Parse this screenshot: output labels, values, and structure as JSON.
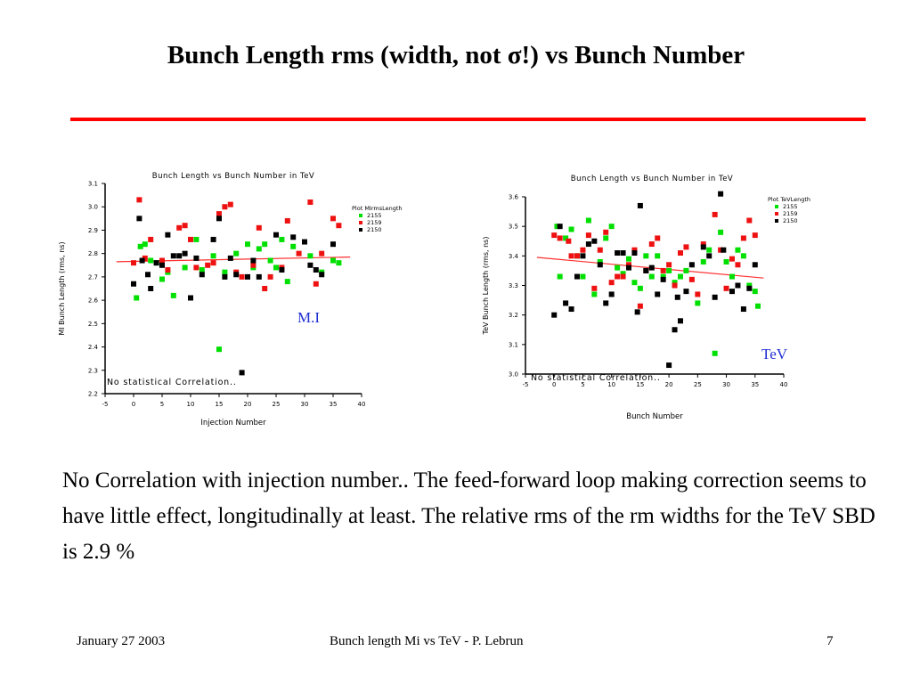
{
  "slide": {
    "title": "Bunch Length rms (width, not σ!)  vs Bunch Number",
    "body": "No Correlation with injection number.. The feed-forward loop making correction seems to have little effect, longitudinally at least. The relative rms of the rm widths for the TeV SBD is 2.9 %",
    "mi_label": "M.I",
    "tev_label": "TeV",
    "footer_date": "January  27  2003",
    "footer_center": "Bunch length Mi vs TeV - P. Lebrun",
    "footer_page": "7"
  },
  "colors": {
    "title_rule": "#ff0000",
    "fit_line": "#ff3030",
    "series": [
      "#00e000",
      "#ee1111",
      "#000000"
    ],
    "annotation_label": "#1f2fd0"
  },
  "chart_data": [
    {
      "type": "scatter",
      "title": "Bunch Length vs Bunch Number in TeV",
      "xlabel": "Injection Number",
      "ylabel": "MI Bunch Length (rms, ns)",
      "xlim": [
        -5,
        40
      ],
      "ylim": [
        2.2,
        3.1
      ],
      "xticks": [
        -5,
        0,
        5,
        10,
        15,
        20,
        25,
        30,
        35,
        40
      ],
      "yticks": [
        2.2,
        2.3,
        2.4,
        2.5,
        2.6,
        2.7,
        2.8,
        2.9,
        3.0,
        3.1
      ],
      "legend_title": "Plot MIrmsLength",
      "legend_position": "top-right",
      "annotation": "No statistical Correlation..",
      "fit_line": {
        "x": [
          -3,
          38
        ],
        "y": [
          2.765,
          2.785
        ]
      },
      "series": [
        {
          "name": "2155",
          "points": [
            [
              0.5,
              2.61
            ],
            [
              1.2,
              2.83
            ],
            [
              2,
              2.84
            ],
            [
              3,
              2.77
            ],
            [
              4,
              2.76
            ],
            [
              5,
              2.69
            ],
            [
              6,
              2.72
            ],
            [
              7,
              2.62
            ],
            [
              9,
              2.74
            ],
            [
              11,
              2.86
            ],
            [
              12,
              2.73
            ],
            [
              14,
              2.79
            ],
            [
              15,
              2.39
            ],
            [
              16,
              2.72
            ],
            [
              18,
              2.8
            ],
            [
              20,
              2.84
            ],
            [
              21,
              2.74
            ],
            [
              22,
              2.82
            ],
            [
              23,
              2.84
            ],
            [
              24,
              2.77
            ],
            [
              25,
              2.74
            ],
            [
              26,
              2.86
            ],
            [
              27,
              2.68
            ],
            [
              28,
              2.83
            ],
            [
              31,
              2.79
            ],
            [
              33,
              2.72
            ],
            [
              35,
              2.77
            ],
            [
              36,
              2.76
            ]
          ]
        },
        {
          "name": "2159",
          "points": [
            [
              0,
              2.76
            ],
            [
              1,
              3.03
            ],
            [
              2,
              2.78
            ],
            [
              3,
              2.86
            ],
            [
              5,
              2.77
            ],
            [
              6,
              2.73
            ],
            [
              8,
              2.91
            ],
            [
              9,
              2.92
            ],
            [
              10,
              2.86
            ],
            [
              11,
              2.74
            ],
            [
              13,
              2.75
            ],
            [
              14,
              2.76
            ],
            [
              15,
              2.97
            ],
            [
              16,
              3.0
            ],
            [
              17,
              3.01
            ],
            [
              18,
              2.72
            ],
            [
              19,
              2.7
            ],
            [
              21,
              2.75
            ],
            [
              22,
              2.91
            ],
            [
              23,
              2.65
            ],
            [
              24,
              2.7
            ],
            [
              26,
              2.74
            ],
            [
              27,
              2.94
            ],
            [
              29,
              2.8
            ],
            [
              31,
              3.02
            ],
            [
              32,
              2.67
            ],
            [
              33,
              2.8
            ],
            [
              35,
              2.95
            ],
            [
              36,
              2.92
            ]
          ]
        },
        {
          "name": "2150",
          "points": [
            [
              0,
              2.67
            ],
            [
              1,
              2.95
            ],
            [
              1.5,
              2.77
            ],
            [
              2.5,
              2.71
            ],
            [
              3,
              2.65
            ],
            [
              4,
              2.76
            ],
            [
              5,
              2.75
            ],
            [
              6,
              2.88
            ],
            [
              7,
              2.79
            ],
            [
              8,
              2.79
            ],
            [
              9,
              2.8
            ],
            [
              10,
              2.61
            ],
            [
              11,
              2.78
            ],
            [
              12,
              2.71
            ],
            [
              14,
              2.86
            ],
            [
              15,
              2.95
            ],
            [
              16,
              2.7
            ],
            [
              17,
              2.78
            ],
            [
              18,
              2.71
            ],
            [
              19,
              2.29
            ],
            [
              20,
              2.7
            ],
            [
              21,
              2.77
            ],
            [
              22,
              2.7
            ],
            [
              25,
              2.88
            ],
            [
              26,
              2.73
            ],
            [
              28,
              2.87
            ],
            [
              30,
              2.85
            ],
            [
              31,
              2.75
            ],
            [
              32,
              2.73
            ],
            [
              33,
              2.71
            ],
            [
              35,
              2.84
            ]
          ]
        }
      ]
    },
    {
      "type": "scatter",
      "title": "Bunch Length vs Bunch Number in TeV",
      "xlabel": "Bunch Number",
      "ylabel": "TeV Bunch Length (rms, ns)",
      "xlim": [
        -5,
        40
      ],
      "ylim": [
        3.0,
        3.6
      ],
      "xticks": [
        -5,
        0,
        5,
        10,
        15,
        20,
        25,
        30,
        35,
        40
      ],
      "yticks": [
        3.0,
        3.1,
        3.2,
        3.3,
        3.4,
        3.5,
        3.6
      ],
      "legend_title": "Plot TeVLength",
      "legend_position": "top-right",
      "annotation": "No statistical Correlation..",
      "fit_line": {
        "x": [
          -3,
          36.5
        ],
        "y": [
          3.395,
          3.325
        ]
      },
      "series": [
        {
          "name": "2155",
          "points": [
            [
              0.5,
              3.5
            ],
            [
              1,
              3.33
            ],
            [
              2,
              3.46
            ],
            [
              3,
              3.49
            ],
            [
              4,
              3.4
            ],
            [
              5,
              3.33
            ],
            [
              6,
              3.52
            ],
            [
              7,
              3.27
            ],
            [
              8,
              3.38
            ],
            [
              9,
              3.46
            ],
            [
              10,
              3.5
            ],
            [
              11,
              3.36
            ],
            [
              12,
              3.34
            ],
            [
              13,
              3.39
            ],
            [
              14,
              3.31
            ],
            [
              15,
              3.29
            ],
            [
              16,
              3.4
            ],
            [
              17,
              3.33
            ],
            [
              18,
              3.4
            ],
            [
              19,
              3.33
            ],
            [
              20,
              3.35
            ],
            [
              21,
              3.31
            ],
            [
              22,
              3.33
            ],
            [
              23,
              3.35
            ],
            [
              25,
              3.24
            ],
            [
              26,
              3.38
            ],
            [
              27,
              3.42
            ],
            [
              28,
              3.07
            ],
            [
              29,
              3.48
            ],
            [
              30,
              3.38
            ],
            [
              31,
              3.33
            ],
            [
              32,
              3.42
            ],
            [
              33,
              3.4
            ],
            [
              34,
              3.3
            ],
            [
              35,
              3.28
            ],
            [
              35.5,
              3.23
            ]
          ]
        },
        {
          "name": "2159",
          "points": [
            [
              0,
              3.47
            ],
            [
              1,
              3.46
            ],
            [
              2.5,
              3.45
            ],
            [
              3,
              3.4
            ],
            [
              4,
              3.4
            ],
            [
              5,
              3.42
            ],
            [
              6,
              3.47
            ],
            [
              7,
              3.29
            ],
            [
              8,
              3.42
            ],
            [
              9,
              3.48
            ],
            [
              10,
              3.31
            ],
            [
              11,
              3.33
            ],
            [
              12,
              3.33
            ],
            [
              13,
              3.37
            ],
            [
              14,
              3.42
            ],
            [
              15,
              3.23
            ],
            [
              16,
              3.35
            ],
            [
              17,
              3.44
            ],
            [
              18,
              3.46
            ],
            [
              19,
              3.35
            ],
            [
              20,
              3.37
            ],
            [
              21,
              3.3
            ],
            [
              22,
              3.41
            ],
            [
              23,
              3.43
            ],
            [
              24,
              3.32
            ],
            [
              25,
              3.27
            ],
            [
              26,
              3.44
            ],
            [
              28,
              3.54
            ],
            [
              29,
              3.42
            ],
            [
              30,
              3.29
            ],
            [
              31,
              3.39
            ],
            [
              32,
              3.37
            ],
            [
              33,
              3.46
            ],
            [
              34,
              3.52
            ],
            [
              35,
              3.47
            ]
          ]
        },
        {
          "name": "2150",
          "points": [
            [
              0,
              3.2
            ],
            [
              1,
              3.5
            ],
            [
              2,
              3.24
            ],
            [
              3,
              3.22
            ],
            [
              4,
              3.33
            ],
            [
              5,
              3.4
            ],
            [
              6,
              3.44
            ],
            [
              7,
              3.45
            ],
            [
              8,
              3.37
            ],
            [
              9,
              3.24
            ],
            [
              10,
              3.27
            ],
            [
              11,
              3.41
            ],
            [
              12,
              3.41
            ],
            [
              13,
              3.36
            ],
            [
              14,
              3.41
            ],
            [
              14.5,
              3.21
            ],
            [
              15,
              3.57
            ],
            [
              16,
              3.35
            ],
            [
              17,
              3.36
            ],
            [
              18,
              3.27
            ],
            [
              19,
              3.32
            ],
            [
              20,
              3.03
            ],
            [
              21,
              3.15
            ],
            [
              21.5,
              3.26
            ],
            [
              22,
              3.18
            ],
            [
              23,
              3.28
            ],
            [
              24,
              3.37
            ],
            [
              26,
              3.43
            ],
            [
              27,
              3.4
            ],
            [
              28,
              3.26
            ],
            [
              29,
              3.61
            ],
            [
              29.5,
              3.42
            ],
            [
              31,
              3.28
            ],
            [
              32,
              3.3
            ],
            [
              33,
              3.22
            ],
            [
              34,
              3.29
            ],
            [
              35,
              3.37
            ]
          ]
        }
      ]
    }
  ]
}
